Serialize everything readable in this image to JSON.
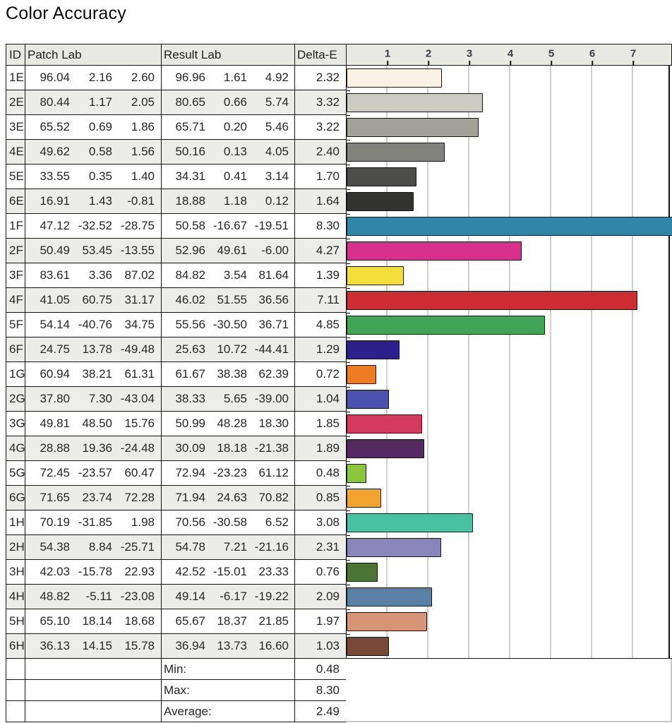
{
  "title": "Color Accuracy",
  "table": {
    "headers": {
      "id": "ID",
      "patch_lab": "Patch Lab",
      "result_lab": "Result Lab",
      "delta_e": "Delta-E"
    },
    "rows": [
      {
        "id": "1E",
        "patch": [
          "96.04",
          "2.16",
          "2.60"
        ],
        "result": [
          "96.96",
          "1.61",
          "4.92"
        ],
        "delta": "2.32",
        "color": "#faf2e4"
      },
      {
        "id": "2E",
        "patch": [
          "80.44",
          "1.17",
          "2.05"
        ],
        "result": [
          "80.65",
          "0.66",
          "5.74"
        ],
        "delta": "3.32",
        "color": "#cccbc2"
      },
      {
        "id": "3E",
        "patch": [
          "65.52",
          "0.69",
          "1.86"
        ],
        "result": [
          "65.71",
          "0.20",
          "5.46"
        ],
        "delta": "3.22",
        "color": "#a2a298"
      },
      {
        "id": "4E",
        "patch": [
          "49.62",
          "0.58",
          "1.56"
        ],
        "result": [
          "50.16",
          "0.13",
          "4.05"
        ],
        "delta": "2.40",
        "color": "#82827c"
      },
      {
        "id": "5E",
        "patch": [
          "33.55",
          "0.35",
          "1.40"
        ],
        "result": [
          "34.31",
          "0.41",
          "3.14"
        ],
        "delta": "1.70",
        "color": "#4c4c4a"
      },
      {
        "id": "6E",
        "patch": [
          "16.91",
          "1.43",
          "-0.81"
        ],
        "result": [
          "18.88",
          "1.18",
          "0.12"
        ],
        "delta": "1.64",
        "color": "#323230"
      },
      {
        "id": "1F",
        "patch": [
          "47.12",
          "-32.52",
          "-28.75"
        ],
        "result": [
          "50.58",
          "-16.67",
          "-19.51"
        ],
        "delta": "8.30",
        "color": "#2e87a7"
      },
      {
        "id": "2F",
        "patch": [
          "50.49",
          "53.45",
          "-13.55"
        ],
        "result": [
          "52.96",
          "49.61",
          "-6.00"
        ],
        "delta": "4.27",
        "color": "#d9308e"
      },
      {
        "id": "3F",
        "patch": [
          "83.61",
          "3.36",
          "87.02"
        ],
        "result": [
          "84.82",
          "3.54",
          "81.64"
        ],
        "delta": "1.39",
        "color": "#f4de3b"
      },
      {
        "id": "4F",
        "patch": [
          "41.05",
          "60.75",
          "31.17"
        ],
        "result": [
          "46.02",
          "51.55",
          "36.56"
        ],
        "delta": "7.11",
        "color": "#ce2c33"
      },
      {
        "id": "5F",
        "patch": [
          "54.14",
          "-40.76",
          "34.75"
        ],
        "result": [
          "55.56",
          "-30.50",
          "36.71"
        ],
        "delta": "4.85",
        "color": "#41a456"
      },
      {
        "id": "6F",
        "patch": [
          "24.75",
          "13.78",
          "-49.48"
        ],
        "result": [
          "25.63",
          "10.72",
          "-44.41"
        ],
        "delta": "1.29",
        "color": "#2c1f8b"
      },
      {
        "id": "1G",
        "patch": [
          "60.94",
          "38.21",
          "61.31"
        ],
        "result": [
          "61.67",
          "38.38",
          "62.39"
        ],
        "delta": "0.72",
        "color": "#ec7b21"
      },
      {
        "id": "2G",
        "patch": [
          "37.80",
          "7.30",
          "-43.04"
        ],
        "result": [
          "38.33",
          "5.65",
          "-39.00"
        ],
        "delta": "1.04",
        "color": "#4b51af"
      },
      {
        "id": "3G",
        "patch": [
          "49.81",
          "48.50",
          "15.76"
        ],
        "result": [
          "50.99",
          "48.28",
          "18.30"
        ],
        "delta": "1.85",
        "color": "#d43a5d"
      },
      {
        "id": "4G",
        "patch": [
          "28.88",
          "19.36",
          "-24.48"
        ],
        "result": [
          "30.09",
          "18.18",
          "-21.38"
        ],
        "delta": "1.89",
        "color": "#542860"
      },
      {
        "id": "5G",
        "patch": [
          "72.45",
          "-23.57",
          "60.47"
        ],
        "result": [
          "72.94",
          "-23.23",
          "61.12"
        ],
        "delta": "0.48",
        "color": "#8cc63f"
      },
      {
        "id": "6G",
        "patch": [
          "71.65",
          "23.74",
          "72.28"
        ],
        "result": [
          "71.94",
          "24.63",
          "70.82"
        ],
        "delta": "0.85",
        "color": "#f1a52e"
      },
      {
        "id": "1H",
        "patch": [
          "70.19",
          "-31.85",
          "1.98"
        ],
        "result": [
          "70.56",
          "-30.58",
          "6.52"
        ],
        "delta": "3.08",
        "color": "#49c2a2"
      },
      {
        "id": "2H",
        "patch": [
          "54.38",
          "8.84",
          "-25.71"
        ],
        "result": [
          "54.78",
          "7.21",
          "-21.16"
        ],
        "delta": "2.31",
        "color": "#8b85be"
      },
      {
        "id": "3H",
        "patch": [
          "42.03",
          "-15.78",
          "22.93"
        ],
        "result": [
          "42.52",
          "-15.01",
          "23.33"
        ],
        "delta": "0.76",
        "color": "#4c7434"
      },
      {
        "id": "4H",
        "patch": [
          "48.82",
          "-5.11",
          "-23.08"
        ],
        "result": [
          "49.14",
          "-6.17",
          "-19.22"
        ],
        "delta": "2.09",
        "color": "#5b80a6"
      },
      {
        "id": "5H",
        "patch": [
          "65.10",
          "18.14",
          "18.68"
        ],
        "result": [
          "65.67",
          "18.37",
          "21.85"
        ],
        "delta": "1.97",
        "color": "#d69577"
      },
      {
        "id": "6H",
        "patch": [
          "36.13",
          "14.15",
          "15.78"
        ],
        "result": [
          "36.94",
          "13.73",
          "16.60"
        ],
        "delta": "1.03",
        "color": "#784a35"
      }
    ],
    "summary": [
      {
        "label": "Min:",
        "value": "0.48"
      },
      {
        "label": "Max:",
        "value": "8.30"
      },
      {
        "label": "Average:",
        "value": "2.49"
      }
    ]
  },
  "chart_data": {
    "type": "bar",
    "orientation": "horizontal",
    "title": "Color Accuracy",
    "xlabel": "Delta-E",
    "categories": [
      "1E",
      "2E",
      "3E",
      "4E",
      "5E",
      "6E",
      "1F",
      "2F",
      "3F",
      "4F",
      "5F",
      "6F",
      "1G",
      "2G",
      "3G",
      "4G",
      "5G",
      "6G",
      "1H",
      "2H",
      "3H",
      "4H",
      "5H",
      "6H"
    ],
    "values": [
      2.32,
      3.32,
      3.22,
      2.4,
      1.7,
      1.64,
      8.3,
      4.27,
      1.39,
      7.11,
      4.85,
      1.29,
      0.72,
      1.04,
      1.85,
      1.89,
      0.48,
      0.85,
      3.08,
      2.31,
      0.76,
      2.09,
      1.97,
      1.03
    ],
    "bar_colors": [
      "#faf2e4",
      "#cccbc2",
      "#a2a298",
      "#82827c",
      "#4c4c4a",
      "#323230",
      "#2e87a7",
      "#d9308e",
      "#f4de3b",
      "#ce2c33",
      "#41a456",
      "#2c1f8b",
      "#ec7b21",
      "#4b51af",
      "#d43a5d",
      "#542860",
      "#8cc63f",
      "#f1a52e",
      "#49c2a2",
      "#8b85be",
      "#4c7434",
      "#5b80a6",
      "#d69577",
      "#784a35"
    ],
    "axis_ticks": [
      1,
      2,
      3,
      4,
      5,
      6,
      7
    ],
    "xlim": [
      0,
      7.95
    ],
    "grid": true,
    "legend": false,
    "stats": {
      "min": 0.48,
      "max": 8.3,
      "average": 2.49
    }
  }
}
